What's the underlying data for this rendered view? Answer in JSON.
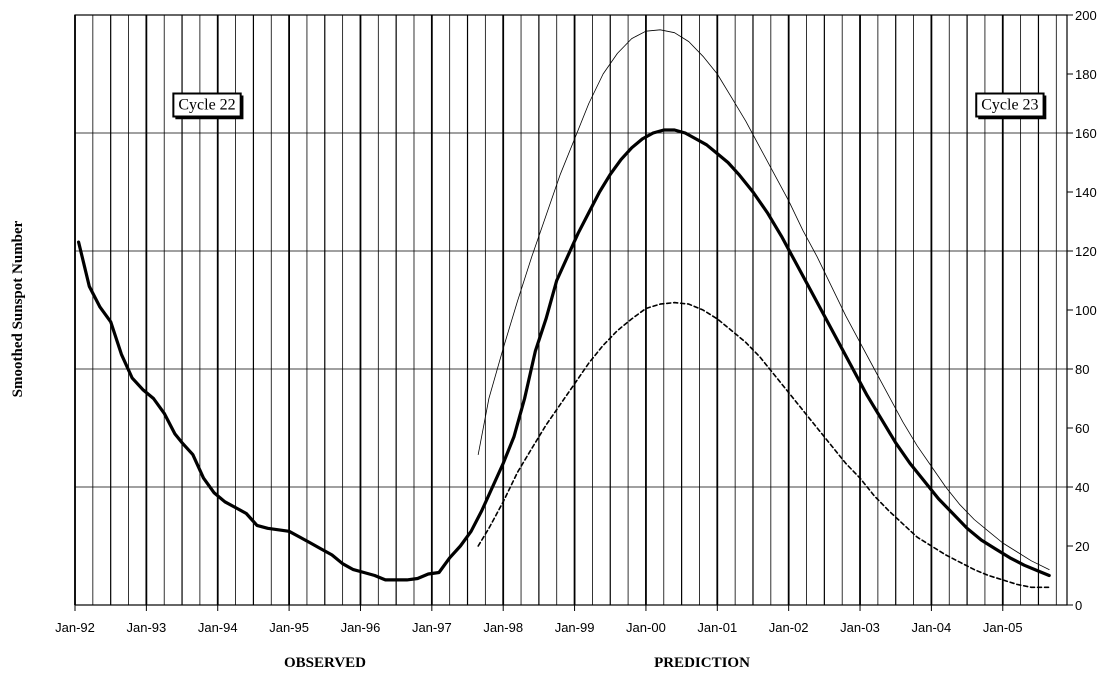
{
  "chart_data": {
    "type": "line",
    "ylabel": "Smoothed Sunspot Number",
    "section_labels": {
      "observed": "OBSERVED",
      "prediction": "PREDICTION"
    },
    "annotations": [
      {
        "text": "Cycle 22",
        "x": "1993.85",
        "y": 170
      },
      {
        "text": "Cycle 23",
        "x": "2005.1",
        "y": 170
      }
    ],
    "x_tick_labels": [
      "Jan-92",
      "Jan-93",
      "Jan-94",
      "Jan-95",
      "Jan-96",
      "Jan-97",
      "Jan-98",
      "Jan-99",
      "Jan-00",
      "Jan-01",
      "Jan-02",
      "Jan-03",
      "Jan-04",
      "Jan-05"
    ],
    "x_tick_values": [
      1992,
      1993,
      1994,
      1995,
      1996,
      1997,
      1998,
      1999,
      2000,
      2001,
      2002,
      2003,
      2004,
      2005
    ],
    "xlim": [
      1992,
      2005.9
    ],
    "ylim": [
      0,
      200
    ],
    "y_ticks": [
      0,
      20,
      40,
      60,
      80,
      100,
      120,
      140,
      160,
      180,
      200
    ],
    "y_axis_side": "right",
    "grid": true,
    "series": [
      {
        "style": "thick-solid",
        "points": [
          [
            1992.05,
            123
          ],
          [
            1992.2,
            108
          ],
          [
            1992.35,
            101
          ],
          [
            1992.5,
            96
          ],
          [
            1992.65,
            85
          ],
          [
            1992.8,
            77
          ],
          [
            1992.95,
            73
          ],
          [
            1993.1,
            70
          ],
          [
            1993.25,
            65
          ],
          [
            1993.4,
            58
          ],
          [
            1993.5,
            55
          ],
          [
            1993.65,
            51
          ],
          [
            1993.8,
            43
          ],
          [
            1993.95,
            38
          ],
          [
            1994.1,
            35
          ],
          [
            1994.25,
            33
          ],
          [
            1994.4,
            31
          ],
          [
            1994.55,
            27
          ],
          [
            1994.7,
            26
          ],
          [
            1994.85,
            25.5
          ],
          [
            1995.0,
            25
          ],
          [
            1995.15,
            23
          ],
          [
            1995.3,
            21
          ],
          [
            1995.45,
            19
          ],
          [
            1995.6,
            17
          ],
          [
            1995.75,
            14
          ],
          [
            1995.9,
            12
          ],
          [
            1996.05,
            11
          ],
          [
            1996.2,
            10
          ],
          [
            1996.35,
            8.5
          ],
          [
            1996.5,
            8.5
          ],
          [
            1996.65,
            8.5
          ],
          [
            1996.8,
            9
          ],
          [
            1996.95,
            10.5
          ],
          [
            1997.1,
            11
          ],
          [
            1997.25,
            16
          ],
          [
            1997.4,
            20
          ],
          [
            1997.55,
            25
          ],
          [
            1997.7,
            32
          ],
          [
            1997.85,
            40
          ],
          [
            1998.0,
            48
          ],
          [
            1998.15,
            57
          ],
          [
            1998.3,
            70
          ],
          [
            1998.45,
            86
          ],
          [
            1998.6,
            97
          ],
          [
            1998.75,
            110
          ],
          [
            1998.9,
            118
          ],
          [
            1999.05,
            126
          ],
          [
            1999.2,
            133
          ],
          [
            1999.35,
            140
          ],
          [
            1999.5,
            146
          ],
          [
            1999.65,
            151
          ],
          [
            1999.8,
            155
          ],
          [
            1999.95,
            158
          ],
          [
            2000.1,
            160
          ],
          [
            2000.25,
            161
          ],
          [
            2000.4,
            161
          ],
          [
            2000.55,
            160
          ],
          [
            2000.7,
            158
          ],
          [
            2000.85,
            156
          ],
          [
            2001.0,
            153
          ],
          [
            2001.15,
            150
          ],
          [
            2001.3,
            146
          ],
          [
            2001.5,
            140
          ],
          [
            2001.7,
            133
          ],
          [
            2001.9,
            125
          ],
          [
            2002.1,
            116
          ],
          [
            2002.3,
            107
          ],
          [
            2002.5,
            98
          ],
          [
            2002.7,
            89
          ],
          [
            2002.9,
            80
          ],
          [
            2003.1,
            71
          ],
          [
            2003.3,
            63
          ],
          [
            2003.5,
            55
          ],
          [
            2003.7,
            48
          ],
          [
            2003.9,
            42
          ],
          [
            2004.1,
            36
          ],
          [
            2004.3,
            31
          ],
          [
            2004.5,
            26
          ],
          [
            2004.7,
            22
          ],
          [
            2004.9,
            19
          ],
          [
            2005.1,
            16
          ],
          [
            2005.3,
            13.5
          ],
          [
            2005.5,
            11.5
          ],
          [
            2005.65,
            10
          ]
        ]
      },
      {
        "style": "thin-solid",
        "points": [
          [
            1997.65,
            51
          ],
          [
            1997.8,
            70
          ],
          [
            1998.0,
            87
          ],
          [
            1998.2,
            103
          ],
          [
            1998.4,
            118
          ],
          [
            1998.6,
            132
          ],
          [
            1998.8,
            146
          ],
          [
            1999.0,
            158
          ],
          [
            1999.2,
            170
          ],
          [
            1999.4,
            180
          ],
          [
            1999.6,
            187
          ],
          [
            1999.8,
            192
          ],
          [
            2000.0,
            194.5
          ],
          [
            2000.2,
            195
          ],
          [
            2000.4,
            194
          ],
          [
            2000.6,
            191
          ],
          [
            2000.8,
            186
          ],
          [
            2001.0,
            180
          ],
          [
            2001.2,
            172
          ],
          [
            2001.4,
            164
          ],
          [
            2001.6,
            155
          ],
          [
            2001.8,
            146
          ],
          [
            2002.0,
            137
          ],
          [
            2002.2,
            127
          ],
          [
            2002.4,
            118
          ],
          [
            2002.6,
            108
          ],
          [
            2002.8,
            98
          ],
          [
            2003.0,
            89
          ],
          [
            2003.2,
            80
          ],
          [
            2003.4,
            71
          ],
          [
            2003.6,
            62
          ],
          [
            2003.8,
            54
          ],
          [
            2004.0,
            47
          ],
          [
            2004.2,
            40
          ],
          [
            2004.4,
            34
          ],
          [
            2004.6,
            29
          ],
          [
            2004.8,
            25
          ],
          [
            2005.0,
            21
          ],
          [
            2005.2,
            18
          ],
          [
            2005.4,
            15
          ],
          [
            2005.65,
            12
          ]
        ]
      },
      {
        "style": "dashed",
        "points": [
          [
            1997.65,
            20
          ],
          [
            1997.8,
            26
          ],
          [
            1998.0,
            35
          ],
          [
            1998.2,
            45
          ],
          [
            1998.4,
            53
          ],
          [
            1998.6,
            61
          ],
          [
            1998.8,
            68
          ],
          [
            1999.0,
            75
          ],
          [
            1999.2,
            82
          ],
          [
            1999.4,
            88
          ],
          [
            1999.6,
            93
          ],
          [
            1999.8,
            97
          ],
          [
            2000.0,
            100.5
          ],
          [
            2000.2,
            102
          ],
          [
            2000.4,
            102.5
          ],
          [
            2000.6,
            102
          ],
          [
            2000.8,
            100
          ],
          [
            2001.0,
            97
          ],
          [
            2001.2,
            93
          ],
          [
            2001.4,
            89
          ],
          [
            2001.6,
            84
          ],
          [
            2001.8,
            78
          ],
          [
            2002.0,
            72
          ],
          [
            2002.2,
            66
          ],
          [
            2002.4,
            60
          ],
          [
            2002.6,
            54
          ],
          [
            2002.8,
            48
          ],
          [
            2003.0,
            43
          ],
          [
            2003.2,
            37
          ],
          [
            2003.4,
            32
          ],
          [
            2003.6,
            27.5
          ],
          [
            2003.8,
            23
          ],
          [
            2004.0,
            20
          ],
          [
            2004.2,
            17
          ],
          [
            2004.4,
            14.5
          ],
          [
            2004.6,
            12
          ],
          [
            2004.8,
            10
          ],
          [
            2005.0,
            8.5
          ],
          [
            2005.2,
            7
          ],
          [
            2005.4,
            6
          ],
          [
            2005.65,
            6
          ]
        ]
      }
    ]
  }
}
